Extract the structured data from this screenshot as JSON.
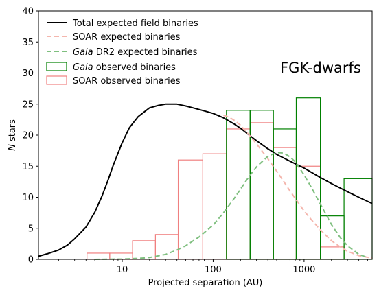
{
  "chart_data": {
    "type": "line",
    "annotation": "FGK-dwarfs",
    "xlabel": "Projected separation (AU)",
    "ylabel": "N stars",
    "x_scale": "log",
    "xlim": [
      1.2,
      5600
    ],
    "ylim": [
      0,
      40
    ],
    "x_ticks": [
      {
        "value": 10,
        "label": "10"
      },
      {
        "value": 100,
        "label": "100"
      },
      {
        "value": 1000,
        "label": "1000"
      }
    ],
    "y_ticks": [
      {
        "value": 0,
        "label": "0"
      },
      {
        "value": 5,
        "label": "5"
      },
      {
        "value": 10,
        "label": "10"
      },
      {
        "value": 15,
        "label": "15"
      },
      {
        "value": 20,
        "label": "20"
      },
      {
        "value": 25,
        "label": "25"
      },
      {
        "value": 30,
        "label": "30"
      },
      {
        "value": 35,
        "label": "35"
      },
      {
        "value": 40,
        "label": "40"
      }
    ],
    "grid": false,
    "legend_position": "top-left",
    "legend": [
      {
        "label_pre": "",
        "label_italic": "",
        "label_post": "Total expected field binaries",
        "style": "line",
        "color": "#000000"
      },
      {
        "label_pre": "",
        "label_italic": "",
        "label_post": "SOAR expected binaries",
        "style": "dashed",
        "color": "#f4b6ad"
      },
      {
        "label_pre": "",
        "label_italic": "Gaia",
        "label_post": " DR2 expected binaries",
        "style": "dashed",
        "color": "#7fbf7f"
      },
      {
        "label_pre": "",
        "label_italic": "Gaia",
        "label_post": " observed binaries",
        "style": "box",
        "color": "#008000"
      },
      {
        "label_pre": "",
        "label_italic": "",
        "label_post": "SOAR observed binaries",
        "style": "box",
        "color": "#f08080"
      }
    ],
    "series": [
      {
        "kind": "line",
        "color": "#000000",
        "x": [
          1.2,
          1.5,
          2,
          2.5,
          3,
          4,
          5,
          6,
          7,
          8,
          10,
          12,
          15,
          20,
          25,
          30,
          40,
          50,
          60,
          80,
          100,
          130,
          170,
          200,
          250,
          300,
          400,
          500,
          700,
          1000,
          1500,
          2000,
          3000,
          4000,
          5600
        ],
        "y": [
          0.5,
          0.9,
          1.5,
          2.3,
          3.3,
          5.2,
          7.6,
          10.2,
          12.8,
          15.2,
          18.8,
          21.2,
          23.0,
          24.4,
          24.8,
          25.0,
          25.0,
          24.7,
          24.4,
          23.9,
          23.5,
          22.8,
          21.8,
          21.1,
          20.0,
          19.1,
          17.8,
          16.9,
          15.8,
          14.7,
          13.2,
          12.2,
          10.9,
          10.0,
          9.0
        ]
      },
      {
        "kind": "line",
        "color": "#f4b6ad",
        "x": [
          130,
          150,
          170,
          200,
          250,
          300,
          400,
          500,
          600,
          700,
          800,
          1000,
          1200,
          1500,
          2000,
          2500,
          3000,
          4000,
          5600
        ],
        "y": [
          23.2,
          22.9,
          22.4,
          21.6,
          20.0,
          18.6,
          16.2,
          14.2,
          12.5,
          11.0,
          9.8,
          7.8,
          6.4,
          4.8,
          3.0,
          2.0,
          1.3,
          0.6,
          0.2
        ]
      },
      {
        "kind": "line",
        "color": "#7fbf7f",
        "x": [
          5,
          10,
          15,
          20,
          30,
          40,
          50,
          70,
          100,
          130,
          170,
          200,
          250,
          300,
          400,
          500,
          600,
          700,
          800,
          1000,
          1200,
          1500,
          2000,
          2500,
          3000,
          4000,
          5000
        ],
        "y": [
          0,
          0.05,
          0.15,
          0.3,
          0.8,
          1.5,
          2.2,
          3.6,
          5.5,
          7.5,
          9.8,
          11.3,
          13.4,
          14.9,
          16.6,
          17.2,
          17.1,
          16.5,
          15.7,
          13.6,
          11.6,
          9.0,
          5.6,
          3.5,
          2.2,
          0.8,
          0.3
        ]
      }
    ],
    "histograms": [
      {
        "name": "SOAR observed binaries",
        "color": "#f08080",
        "bins": [
          {
            "x0": 4.1,
            "x1": 7.3,
            "value": 1
          },
          {
            "x0": 7.3,
            "x1": 13,
            "value": 1
          },
          {
            "x0": 13,
            "x1": 23.2,
            "value": 3
          },
          {
            "x0": 23.2,
            "x1": 41.3,
            "value": 4
          },
          {
            "x0": 41.3,
            "x1": 77,
            "value": 16
          },
          {
            "x0": 77,
            "x1": 140,
            "value": 17
          },
          {
            "x0": 140,
            "x1": 255,
            "value": 21
          },
          {
            "x0": 255,
            "x1": 460,
            "value": 22
          },
          {
            "x0": 460,
            "x1": 820,
            "value": 18
          },
          {
            "x0": 820,
            "x1": 1510,
            "value": 15
          },
          {
            "x0": 1510,
            "x1": 2750,
            "value": 2
          }
        ]
      },
      {
        "name": "Gaia observed binaries",
        "color": "#008000",
        "bins": [
          {
            "x0": 140,
            "x1": 255,
            "value": 24
          },
          {
            "x0": 255,
            "x1": 460,
            "value": 24
          },
          {
            "x0": 460,
            "x1": 820,
            "value": 21
          },
          {
            "x0": 820,
            "x1": 1510,
            "value": 26
          },
          {
            "x0": 1510,
            "x1": 2750,
            "value": 7
          },
          {
            "x0": 2750,
            "x1": 5600,
            "value": 13
          }
        ]
      }
    ]
  }
}
